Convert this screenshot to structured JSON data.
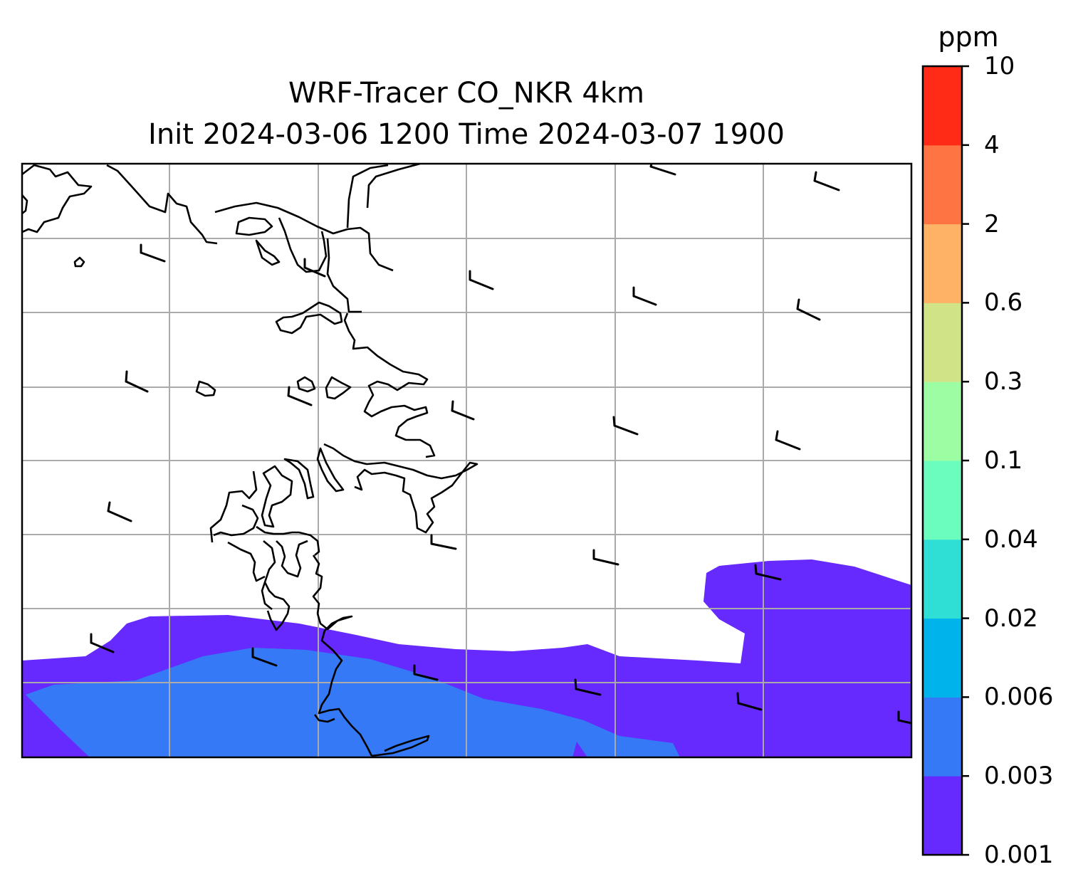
{
  "title": "WRF-Tracer CO_NKR 4km",
  "subtitle": "Init 2024-03-06 1200 Time 2024-03-07 1900",
  "colorbar": {
    "unit": "ppm",
    "levels": [
      "0.001",
      "0.003",
      "0.006",
      "0.02",
      "0.04",
      "0.1",
      "0.3",
      "0.6",
      "2",
      "4",
      "10"
    ],
    "colors": [
      "#6629fe",
      "#3579f6",
      "#00b4eb",
      "#2fdfd6",
      "#6afdbe",
      "#9cfda3",
      "#d1e387",
      "#fdb266",
      "#fe7442",
      "#ff2b16"
    ]
  },
  "map": {
    "layers": [
      "coastlines",
      "lat-lon gridlines",
      "CO tracer concentration contours",
      "wind barbs"
    ],
    "fill_colors": {
      "lowest": "#6629fe",
      "second": "#3579f6"
    },
    "gridline_color": "#aaaaaa"
  }
}
